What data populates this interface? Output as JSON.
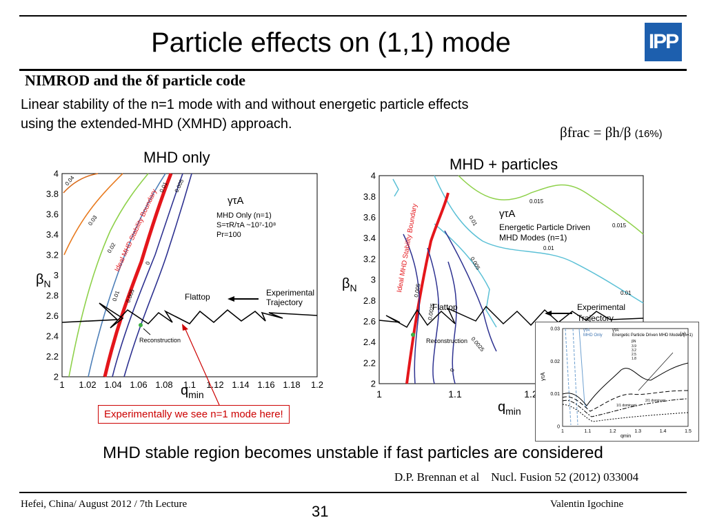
{
  "slide": {
    "title": "Particle effects on (1,1) mode",
    "logo_text": "IPP",
    "subtitle": "NIMROD and the δf particle code",
    "description_line1": "Linear stability of the n=1 mode with and without energetic particle effects",
    "description_line2": "using the extended-MHD (XMHD) approach.",
    "formula": "βfrac  =  βh/β",
    "formula_note": "(16%)",
    "conclusion": "MHD stable region becomes unstable if fast particles are considered",
    "reference_author": "D.P. Brennan et al",
    "reference_journal": "Nucl. Fusion 52 (2012) 033004",
    "footer_left": "Hefei, China/ August 2012 / 7th Lecture",
    "page_number": "31",
    "footer_right": "Valentin Igochine",
    "annotation": "Experimentally we see n=1 mode here!"
  },
  "plots": {
    "left": {
      "label": "MHD only",
      "xlabel": "q",
      "xlabel_sub": "min",
      "ylabel": "β",
      "ylabel_sub": "N",
      "x_ticks": [
        "1",
        "1.02",
        "1.04",
        "1.06",
        "1.08",
        "1.1",
        "1.12",
        "1.14",
        "1.16",
        "1.18",
        "1.2"
      ],
      "y_ticks": [
        "2",
        "2.2",
        "2.4",
        "2.6",
        "2.8",
        "3",
        "3.2",
        "3.4",
        "3.6",
        "3.8",
        "4"
      ],
      "legend_gamma": "γτA",
      "legend_lines": [
        "MHD Only (n=1)",
        "S=τR/τA ~10⁷-10⁸",
        "Pr=100"
      ],
      "boundary_label": "Ideal MHD Stability Boundary",
      "flattop": "Flattop",
      "experimental": "Experimental",
      "trajectory": "Trajectory",
      "reconstruction": "Reconstruction",
      "contours": [
        "0.04",
        "0.03",
        "0.02",
        "0.01",
        "0.005",
        "0",
        "0.01",
        "0.005"
      ]
    },
    "right": {
      "label": "MHD + particles",
      "xlabel": "q",
      "xlabel_sub": "min",
      "ylabel": "β",
      "ylabel_sub": "N",
      "x_ticks": [
        "1",
        "1.1",
        "1.2"
      ],
      "y_ticks": [
        "2",
        "2.2",
        "2.4",
        "2.6",
        "2.8",
        "3",
        "3.2",
        "3.4",
        "3.6",
        "3.8",
        "4"
      ],
      "legend_gamma": "γτA",
      "legend_lines": [
        "Energetic Particle Driven",
        "MHD Modes (n=1)"
      ],
      "boundary_label": "Ideal MHD Stability Boundary",
      "flattop": "Flattop",
      "experimental": "Experimental",
      "trajectory": "Trajectory",
      "reconstruction": "Reconstruction",
      "contours": [
        "0.015",
        "0.015",
        "0.01",
        "0.01",
        "0.01",
        "0.005",
        "0.005",
        "0.0025",
        "0.0025",
        "0"
      ]
    },
    "inset": {
      "panel": "(a)",
      "title": "Energetic Particle Driven MHD Modes (n=1)",
      "legend_a": "γτA",
      "legend_b": "MHD Only",
      "ylabel": "γτA",
      "xlabel": "qmin",
      "x_ticks": [
        "1",
        "1.1",
        "1.2",
        "1.3",
        "1.4",
        "1.5"
      ],
      "y_ticks": [
        "0",
        "0.01",
        "0.02",
        "0.03"
      ],
      "beta_label": "βN",
      "beta_values": [
        "3.9",
        "3.2",
        "2.5",
        "1.8"
      ],
      "note1": "2/1 dominant",
      "note2": "1/1 dominant"
    }
  }
}
